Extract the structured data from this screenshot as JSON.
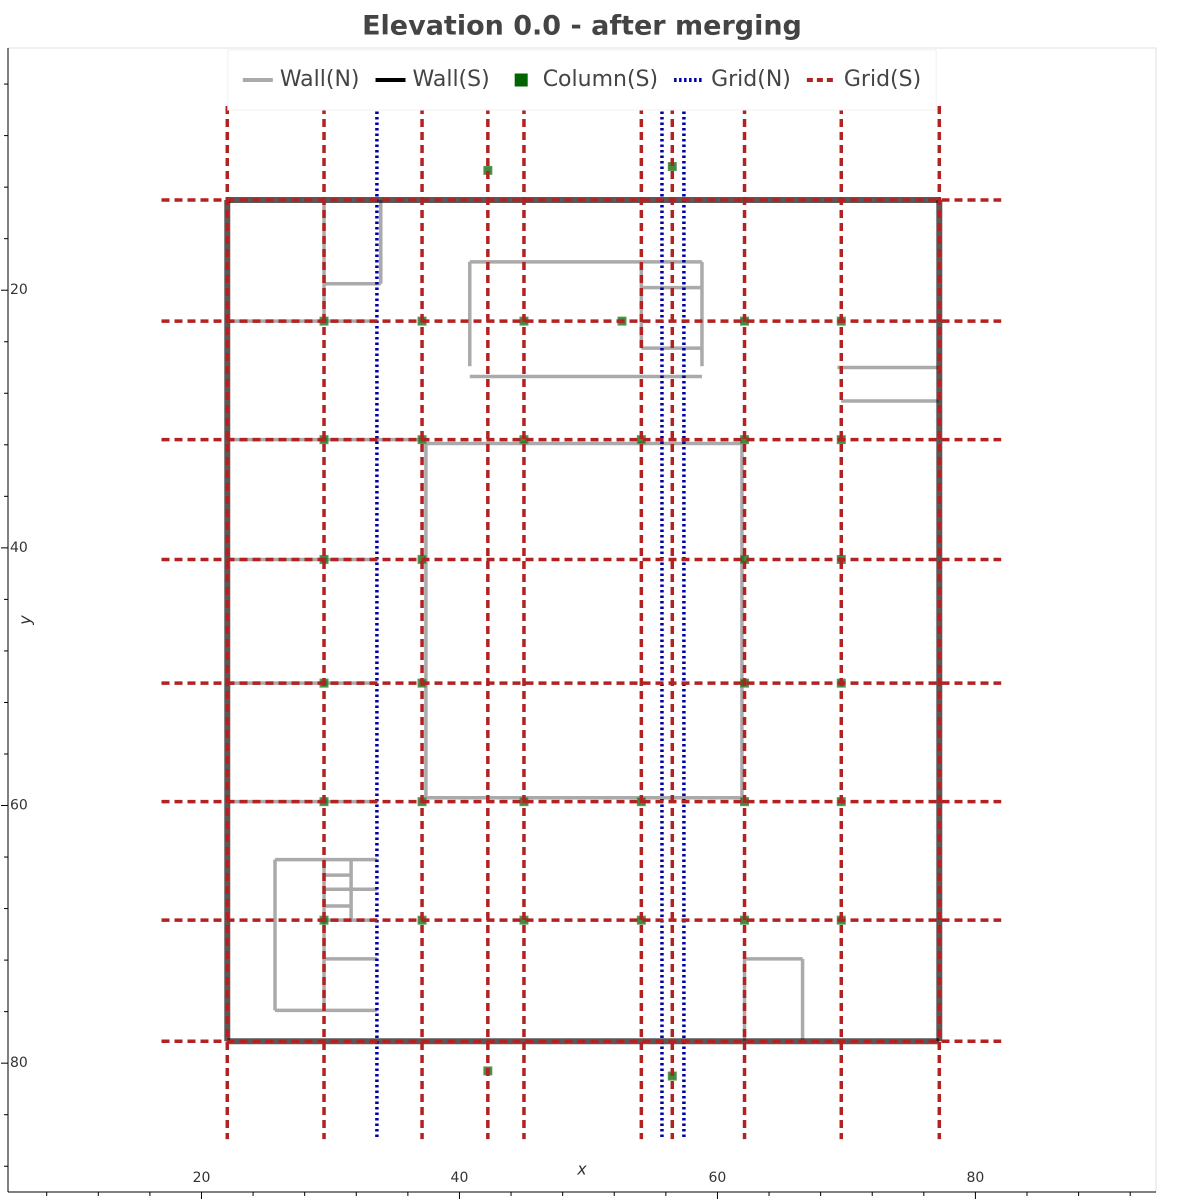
{
  "chart_data": {
    "type": "plan",
    "title": "Elevation 0.0 - after merging",
    "x_label": "x",
    "y_label": "y",
    "xlim": [
      5,
      94
    ],
    "ylim": [
      1.2,
      90
    ],
    "y_inverted": true,
    "xticks": [
      20,
      40,
      60,
      80
    ],
    "yticks": [
      20,
      40,
      60,
      80
    ],
    "xminorticks": [
      8,
      12,
      16,
      24,
      28,
      32,
      36,
      44,
      48,
      52,
      56,
      64,
      68,
      72,
      76,
      84,
      88,
      92
    ],
    "yminorticks": [
      4,
      8,
      12,
      16,
      24,
      28,
      32,
      36,
      44,
      48,
      52,
      56,
      64,
      68,
      72,
      76,
      84,
      88
    ],
    "legend": "upper center",
    "series": [
      {
        "name": "Wall(N)",
        "color": "#aaaaaa",
        "style": "solid",
        "segments": [
          [
            29.5,
            13.0,
            29.5,
            22.4
          ],
          [
            29.5,
            19.5,
            33.9,
            19.5
          ],
          [
            33.9,
            13.0,
            33.9,
            19.5
          ],
          [
            22.0,
            22.4,
            33.6,
            22.4
          ],
          [
            22.0,
            31.6,
            37.1,
            31.6
          ],
          [
            22.0,
            40.9,
            33.6,
            40.9
          ],
          [
            22.0,
            50.5,
            33.6,
            50.5
          ],
          [
            22.0,
            59.7,
            33.6,
            59.7
          ],
          [
            37.4,
            31.9,
            61.9,
            31.9
          ],
          [
            61.9,
            31.9,
            61.9,
            59.4
          ],
          [
            37.4,
            59.4,
            61.9,
            59.4
          ],
          [
            37.4,
            31.9,
            37.4,
            59.4
          ],
          [
            40.8,
            17.8,
            58.8,
            17.8
          ],
          [
            40.8,
            17.8,
            40.8,
            25.9
          ],
          [
            40.8,
            26.7,
            58.8,
            26.7
          ],
          [
            58.8,
            17.8,
            58.8,
            25.9
          ],
          [
            54.1,
            19.8,
            58.8,
            19.8
          ],
          [
            54.1,
            24.5,
            58.8,
            24.5
          ],
          [
            54.1,
            17.8,
            54.1,
            24.5
          ],
          [
            69.3,
            26.0,
            77.2,
            26.0
          ],
          [
            69.6,
            28.6,
            77.2,
            28.6
          ],
          [
            25.7,
            64.2,
            33.6,
            64.2
          ],
          [
            25.7,
            64.2,
            25.7,
            75.9
          ],
          [
            25.7,
            75.9,
            33.6,
            75.9
          ],
          [
            29.5,
            64.2,
            29.5,
            75.9
          ],
          [
            31.6,
            64.2,
            31.6,
            68.9
          ],
          [
            29.5,
            65.4,
            31.6,
            65.4
          ],
          [
            29.5,
            66.5,
            33.6,
            66.5
          ],
          [
            29.5,
            67.8,
            31.6,
            67.8
          ],
          [
            29.5,
            71.9,
            33.6,
            71.9
          ],
          [
            29.5,
            68.9,
            33.6,
            68.9
          ],
          [
            62.1,
            71.9,
            66.6,
            71.9
          ],
          [
            66.6,
            71.9,
            66.6,
            78.3
          ],
          [
            62.1,
            71.9,
            62.1,
            78.3
          ]
        ]
      },
      {
        "name": "Wall(S)",
        "color": "#000000",
        "alpha": 0.65,
        "style": "solid",
        "segments": [
          [
            22.0,
            13.0,
            77.2,
            13.0
          ],
          [
            77.2,
            13.0,
            77.2,
            78.3
          ],
          [
            22.0,
            78.3,
            77.2,
            78.3
          ],
          [
            22.0,
            13.0,
            22.0,
            78.3
          ]
        ]
      },
      {
        "name": "Column(S)",
        "color": "#006400",
        "x": [
          42.2,
          56.5,
          42.2,
          56.5,
          29.5,
          37.1,
          45.0,
          52.6,
          62.1,
          69.6,
          29.5,
          37.1,
          45.0,
          54.1,
          62.1,
          69.6,
          29.5,
          37.1,
          62.1,
          69.6,
          29.5,
          37.1,
          62.1,
          69.6,
          29.5,
          37.1,
          45.0,
          54.1,
          62.1,
          69.6,
          29.5,
          37.1,
          45.0,
          54.1,
          62.1,
          69.6
        ],
        "y": [
          10.7,
          10.4,
          80.6,
          81.0,
          22.4,
          22.4,
          22.4,
          22.4,
          22.4,
          22.4,
          31.6,
          31.6,
          31.6,
          31.6,
          31.6,
          31.6,
          40.9,
          40.9,
          40.9,
          40.9,
          50.5,
          50.5,
          50.5,
          50.5,
          59.7,
          59.7,
          59.7,
          59.7,
          59.7,
          59.7,
          68.9,
          68.9,
          68.9,
          68.9,
          68.9,
          68.9
        ]
      },
      {
        "name": "Grid(N)",
        "color": "#0000aa",
        "style": "dotted",
        "segments": [
          [
            33.6,
            5.7,
            33.6,
            85.9
          ],
          [
            55.7,
            5.7,
            55.7,
            85.9
          ],
          [
            57.4,
            5.7,
            57.4,
            85.9
          ]
        ]
      },
      {
        "name": "Grid(S)",
        "color": "#b22222",
        "style": "dashed",
        "segments": [
          [
            22.0,
            5.7,
            22.0,
            85.9
          ],
          [
            29.5,
            5.7,
            29.5,
            85.9
          ],
          [
            37.1,
            5.7,
            37.1,
            85.9
          ],
          [
            42.2,
            5.7,
            42.2,
            85.9
          ],
          [
            45.0,
            5.7,
            45.0,
            85.9
          ],
          [
            54.1,
            5.7,
            54.1,
            85.9
          ],
          [
            56.5,
            5.7,
            56.5,
            85.9
          ],
          [
            62.1,
            5.7,
            62.1,
            85.9
          ],
          [
            69.6,
            5.7,
            69.6,
            85.9
          ],
          [
            77.2,
            5.7,
            77.2,
            85.9
          ],
          [
            16.9,
            13.0,
            82.0,
            13.0
          ],
          [
            16.9,
            22.4,
            82.0,
            22.4
          ],
          [
            16.9,
            31.6,
            82.0,
            31.6
          ],
          [
            16.9,
            40.9,
            82.0,
            40.9
          ],
          [
            16.9,
            50.5,
            82.0,
            50.5
          ],
          [
            16.9,
            59.7,
            82.0,
            59.7
          ],
          [
            16.9,
            68.9,
            82.0,
            68.9
          ],
          [
            16.9,
            78.3,
            82.0,
            78.3
          ]
        ]
      }
    ]
  }
}
